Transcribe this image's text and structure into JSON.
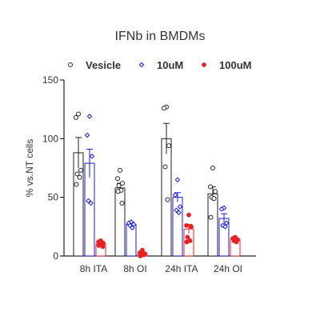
{
  "chart_data": {
    "type": "bar",
    "title": "IFNb in BMDMs",
    "ylabel": "% vs.NT cells",
    "xlabel": "",
    "ylim": [
      0,
      150
    ],
    "yticks": [
      0,
      50,
      100,
      150
    ],
    "categories": [
      "8h ITA",
      "8h OI",
      "24h ITA",
      "24h OI"
    ],
    "legend_position": "top",
    "grid": false,
    "series": [
      {
        "name": "Vesicle",
        "color": "#222222",
        "marker": "open-circle",
        "values": [
          88,
          58,
          100,
          53
        ],
        "errors": [
          13,
          4,
          13,
          6
        ],
        "points": [
          [
            121,
            118,
            73,
            70,
            67,
            61
          ],
          [
            73,
            66,
            62,
            60,
            56,
            55,
            45
          ],
          [
            127,
            126,
            94,
            76,
            48
          ],
          [
            75,
            59,
            55,
            50,
            49,
            33
          ]
        ]
      },
      {
        "name": "10uM",
        "color": "#1a1ae6",
        "marker": "open-diamond",
        "values": [
          79,
          27,
          50,
          32
        ],
        "errors": [
          12,
          2,
          4,
          4
        ],
        "points": [
          [
            119,
            103,
            85,
            47,
            45
          ],
          [
            29,
            28,
            27,
            26,
            24
          ],
          [
            65,
            52,
            42,
            39,
            37
          ],
          [
            41,
            40,
            28,
            26,
            25
          ]
        ]
      },
      {
        "name": "100uM",
        "color": "#e62222",
        "marker": "filled-circle",
        "values": [
          10,
          2,
          23,
          14
        ],
        "errors": [
          1,
          1,
          4,
          1
        ],
        "points": [
          [
            13,
            12,
            11,
            10,
            10,
            9,
            8
          ],
          [
            5,
            3,
            2,
            1,
            1,
            0
          ],
          [
            35,
            26,
            25,
            16,
            13,
            12
          ],
          [
            16,
            15,
            14,
            13,
            12
          ]
        ]
      }
    ]
  }
}
